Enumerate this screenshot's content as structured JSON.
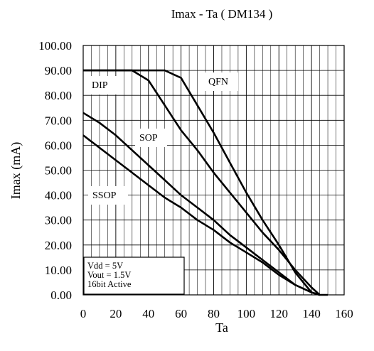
{
  "chart_data": {
    "type": "line",
    "title": "Imax - Ta ( DM134 )",
    "xlabel": "Ta",
    "ylabel": "Imax (mA)",
    "xlim": [
      0,
      160
    ],
    "ylim": [
      0,
      100
    ],
    "x_ticks": [
      "0",
      "20",
      "40",
      "60",
      "80",
      "100",
      "120",
      "140",
      "160"
    ],
    "y_ticks": [
      "0.00",
      "10.00",
      "20.00",
      "30.00",
      "40.00",
      "50.00",
      "60.00",
      "70.00",
      "80.00",
      "90.00",
      "100.00"
    ],
    "grid": true,
    "grid_x_minor_step": 5,
    "grid_y_step": 10,
    "series": [
      {
        "name": "DIP",
        "x": [
          0,
          30,
          40,
          50,
          60,
          70,
          80,
          90,
          100,
          110,
          120,
          130,
          140,
          145,
          150
        ],
        "y": [
          90,
          90,
          86,
          76,
          66,
          58,
          49,
          41,
          33,
          25,
          18,
          10,
          3,
          0,
          0
        ]
      },
      {
        "name": "QFN",
        "x": [
          0,
          50,
          60,
          70,
          80,
          90,
          100,
          110,
          120,
          130,
          140,
          145
        ],
        "y": [
          90,
          90,
          87,
          76,
          65,
          53,
          41,
          30,
          20,
          9,
          1,
          0
        ]
      },
      {
        "name": "SOP",
        "x": [
          0,
          10,
          20,
          30,
          40,
          50,
          60,
          70,
          80,
          90,
          100,
          110,
          120,
          130,
          140,
          145
        ],
        "y": [
          73,
          69,
          64,
          58,
          52,
          46,
          40,
          35,
          30,
          24,
          19,
          14,
          9,
          4,
          1,
          0
        ]
      },
      {
        "name": "SSOP",
        "x": [
          0,
          10,
          20,
          30,
          40,
          50,
          60,
          70,
          80,
          90,
          100,
          110,
          120,
          130,
          140,
          145
        ],
        "y": [
          64,
          59,
          54,
          49,
          44,
          39,
          35,
          30,
          26,
          21,
          17,
          13,
          8,
          4,
          1,
          0
        ]
      }
    ],
    "annotations": [
      "Vdd = 5V",
      "Vout = 1.5V",
      "16bit Active"
    ],
    "colors": {
      "line": "#000000",
      "grid": "#000000",
      "background": "#ffffff"
    }
  }
}
